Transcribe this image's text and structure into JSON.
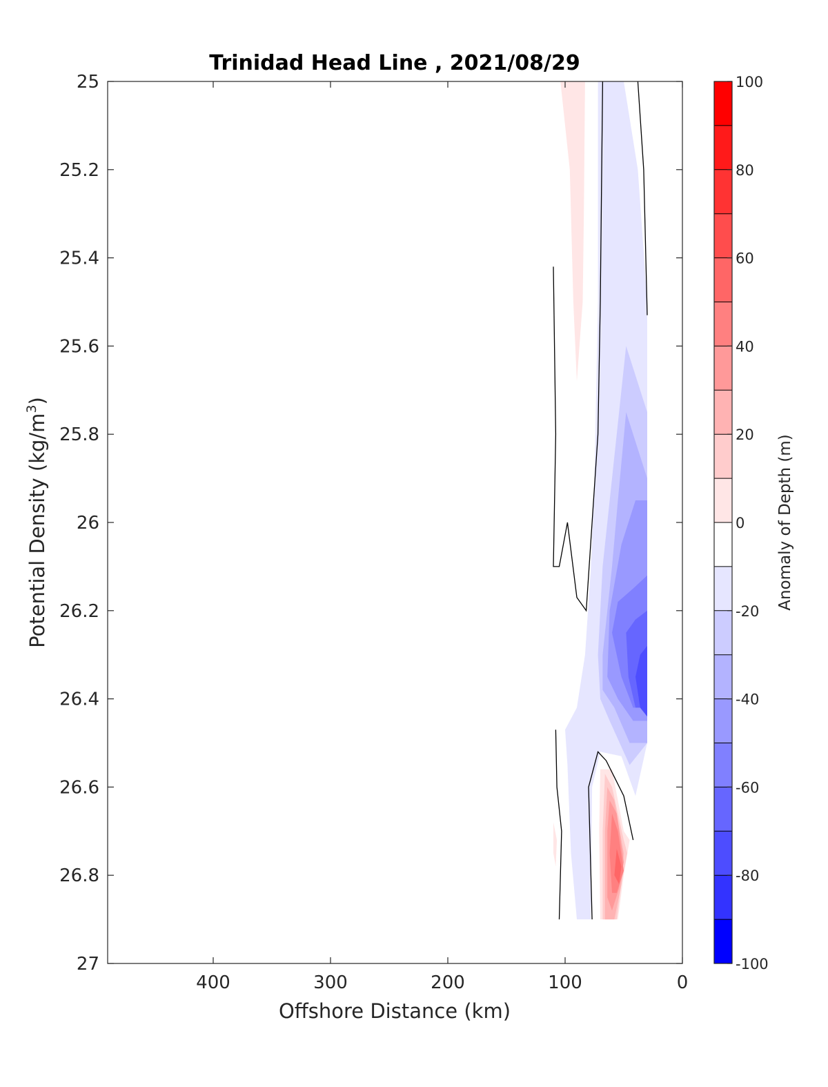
{
  "chart_data": {
    "type": "contour",
    "title": "Trinidad Head Line , 2021/08/29",
    "xlabel": "Offshore Distance (km)",
    "ylabel_main": "Potential Density (kg/m",
    "ylabel_sup": "3",
    "ylabel_close": ")",
    "colorbar_label": "Anomaly of Depth (m)",
    "xlim": [
      490,
      0
    ],
    "ylim": [
      25,
      27
    ],
    "x_ticks": [
      400,
      300,
      200,
      100,
      0
    ],
    "y_ticks": [
      "25",
      "25.2",
      "25.4",
      "25.6",
      "25.8",
      "26",
      "26.2",
      "26.4",
      "26.6",
      "26.8",
      "27"
    ],
    "colorbar_range": [
      -100,
      100
    ],
    "colorbar_ticks": [
      100,
      80,
      60,
      40,
      20,
      0,
      -20,
      -40,
      -60,
      -80,
      -100
    ],
    "colorbar_levels": [
      {
        "lo": 90,
        "hi": 100,
        "color": "#ff0000"
      },
      {
        "lo": 80,
        "hi": 90,
        "color": "#ff1a1a"
      },
      {
        "lo": 70,
        "hi": 80,
        "color": "#ff3333"
      },
      {
        "lo": 60,
        "hi": 70,
        "color": "#ff4d4d"
      },
      {
        "lo": 50,
        "hi": 60,
        "color": "#ff6666"
      },
      {
        "lo": 40,
        "hi": 50,
        "color": "#ff8080"
      },
      {
        "lo": 30,
        "hi": 40,
        "color": "#ff9999"
      },
      {
        "lo": 20,
        "hi": 30,
        "color": "#ffb3b3"
      },
      {
        "lo": 10,
        "hi": 20,
        "color": "#ffcccc"
      },
      {
        "lo": 0,
        "hi": 10,
        "color": "#ffe6e6"
      },
      {
        "lo": -10,
        "hi": 0,
        "color": "#ffffff"
      },
      {
        "lo": -20,
        "hi": -10,
        "color": "#e6e6ff"
      },
      {
        "lo": -30,
        "hi": -20,
        "color": "#ccccff"
      },
      {
        "lo": -40,
        "hi": -30,
        "color": "#b3b3ff"
      },
      {
        "lo": -50,
        "hi": -40,
        "color": "#9999ff"
      },
      {
        "lo": -60,
        "hi": -50,
        "color": "#8080ff"
      },
      {
        "lo": -70,
        "hi": -60,
        "color": "#6666ff"
      },
      {
        "lo": -80,
        "hi": -70,
        "color": "#4d4dff"
      },
      {
        "lo": -90,
        "hi": -80,
        "color": "#3333ff"
      },
      {
        "lo": -100,
        "hi": -90,
        "color": "#0000ff"
      }
    ],
    "filled_regions": [
      {
        "level": 10,
        "color": "#ffe6e6",
        "points": [
          [
            104,
            25.0
          ],
          [
            83,
            25.0
          ],
          [
            84,
            25.3
          ],
          [
            85,
            25.5
          ],
          [
            90,
            25.68
          ],
          [
            93,
            25.5
          ],
          [
            96,
            25.2
          ]
        ]
      },
      {
        "level": -10,
        "color": "#e6e6ff",
        "points": [
          [
            72,
            25.0
          ],
          [
            50,
            25.0
          ],
          [
            38,
            25.2
          ],
          [
            30,
            25.5
          ],
          [
            30,
            26.5
          ],
          [
            40,
            26.62
          ],
          [
            52,
            26.53
          ],
          [
            70,
            26.52
          ],
          [
            77,
            26.6
          ],
          [
            78,
            26.9
          ],
          [
            90,
            26.9
          ],
          [
            95,
            26.75
          ],
          [
            98,
            26.55
          ],
          [
            100,
            26.47
          ],
          [
            90,
            26.42
          ],
          [
            83,
            26.3
          ],
          [
            78,
            26.1
          ],
          [
            75,
            25.9
          ],
          [
            72,
            25.5
          ]
        ]
      },
      {
        "level": -20,
        "color": "#ccccff",
        "points": [
          [
            48,
            25.6
          ],
          [
            30,
            25.75
          ],
          [
            30,
            26.5
          ],
          [
            45,
            26.55
          ],
          [
            62,
            26.45
          ],
          [
            70,
            26.4
          ],
          [
            72,
            26.3
          ],
          [
            68,
            26.1
          ],
          [
            60,
            25.9
          ],
          [
            52,
            25.7
          ]
        ]
      },
      {
        "level": -30,
        "color": "#b3b3ff",
        "points": [
          [
            48,
            25.75
          ],
          [
            30,
            25.9
          ],
          [
            30,
            26.5
          ],
          [
            45,
            26.5
          ],
          [
            58,
            26.42
          ],
          [
            68,
            26.38
          ],
          [
            68,
            26.3
          ],
          [
            60,
            26.1
          ],
          [
            55,
            25.95
          ]
        ]
      },
      {
        "level": -40,
        "color": "#9999ff",
        "points": [
          [
            40,
            25.95
          ],
          [
            30,
            25.95
          ],
          [
            30,
            26.45
          ],
          [
            42,
            26.45
          ],
          [
            55,
            26.4
          ],
          [
            64,
            26.35
          ],
          [
            62,
            26.2
          ],
          [
            52,
            26.05
          ]
        ]
      },
      {
        "level": -50,
        "color": "#8080ff",
        "points": [
          [
            30,
            26.12
          ],
          [
            30,
            26.42
          ],
          [
            42,
            26.42
          ],
          [
            52,
            26.35
          ],
          [
            60,
            26.25
          ],
          [
            55,
            26.18
          ],
          [
            42,
            26.15
          ]
        ]
      },
      {
        "level": -60,
        "color": "#6666ff",
        "points": [
          [
            30,
            26.2
          ],
          [
            30,
            26.42
          ],
          [
            40,
            26.42
          ],
          [
            46,
            26.35
          ],
          [
            48,
            26.25
          ],
          [
            40,
            26.22
          ]
        ]
      },
      {
        "level": -70,
        "color": "#4d4dff",
        "points": [
          [
            30,
            26.28
          ],
          [
            30,
            26.44
          ],
          [
            36,
            26.42
          ],
          [
            40,
            26.35
          ],
          [
            36,
            26.3
          ]
        ]
      },
      {
        "level": 0.5,
        "color": "#ffe6e6",
        "points": [
          [
            110,
            26.68
          ],
          [
            107,
            26.72
          ],
          [
            108,
            26.78
          ],
          [
            110,
            26.75
          ]
        ]
      },
      {
        "level": 10,
        "color": "#ffe6e6",
        "points": [
          [
            70,
            26.56
          ],
          [
            60,
            26.56
          ],
          [
            50,
            26.7
          ],
          [
            45,
            26.72
          ],
          [
            50,
            26.8
          ],
          [
            55,
            26.9
          ],
          [
            70,
            26.9
          ],
          [
            71,
            26.7
          ]
        ]
      },
      {
        "level": 20,
        "color": "#ffcccc",
        "points": [
          [
            66,
            26.57
          ],
          [
            60,
            26.6
          ],
          [
            50,
            26.72
          ],
          [
            47,
            26.75
          ],
          [
            52,
            26.82
          ],
          [
            56,
            26.9
          ],
          [
            68,
            26.9
          ],
          [
            68,
            26.7
          ]
        ]
      },
      {
        "level": 30,
        "color": "#ffb3b3",
        "points": [
          [
            64,
            26.6
          ],
          [
            58,
            26.63
          ],
          [
            50,
            26.75
          ],
          [
            52,
            26.82
          ],
          [
            58,
            26.9
          ],
          [
            66,
            26.9
          ],
          [
            66,
            26.7
          ]
        ]
      },
      {
        "level": 40,
        "color": "#ff9999",
        "points": [
          [
            62,
            26.63
          ],
          [
            56,
            26.66
          ],
          [
            50,
            26.77
          ],
          [
            54,
            26.83
          ],
          [
            60,
            26.88
          ],
          [
            64,
            26.85
          ],
          [
            64,
            26.7
          ]
        ]
      },
      {
        "level": 50,
        "color": "#ff8080",
        "points": [
          [
            60,
            26.66
          ],
          [
            55,
            26.7
          ],
          [
            50,
            26.79
          ],
          [
            56,
            26.84
          ],
          [
            60,
            26.84
          ],
          [
            62,
            26.75
          ]
        ]
      },
      {
        "level": 60,
        "color": "#ff6666",
        "points": [
          [
            56,
            26.74
          ],
          [
            52,
            26.78
          ],
          [
            54,
            26.82
          ],
          [
            58,
            26.8
          ]
        ]
      }
    ],
    "zero_contours": [
      [
        [
          68,
          25.0
        ],
        [
          70,
          25.5
        ],
        [
          72,
          25.8
        ],
        [
          77,
          26.0
        ],
        [
          82,
          26.2
        ],
        [
          90,
          26.17
        ],
        [
          98,
          26.0
        ],
        [
          105,
          26.1
        ],
        [
          110,
          26.1
        ],
        [
          108,
          25.8
        ],
        [
          110,
          25.42
        ]
      ],
      [
        [
          38,
          25.0
        ],
        [
          33,
          25.2
        ],
        [
          30,
          25.53
        ]
      ],
      [
        [
          108,
          26.47
        ],
        [
          107,
          26.6
        ],
        [
          103,
          26.7
        ],
        [
          105,
          26.9
        ]
      ],
      [
        [
          77,
          26.9
        ],
        [
          80,
          26.6
        ],
        [
          72,
          26.52
        ],
        [
          65,
          26.54
        ],
        [
          50,
          26.62
        ],
        [
          42,
          26.72
        ]
      ]
    ]
  }
}
